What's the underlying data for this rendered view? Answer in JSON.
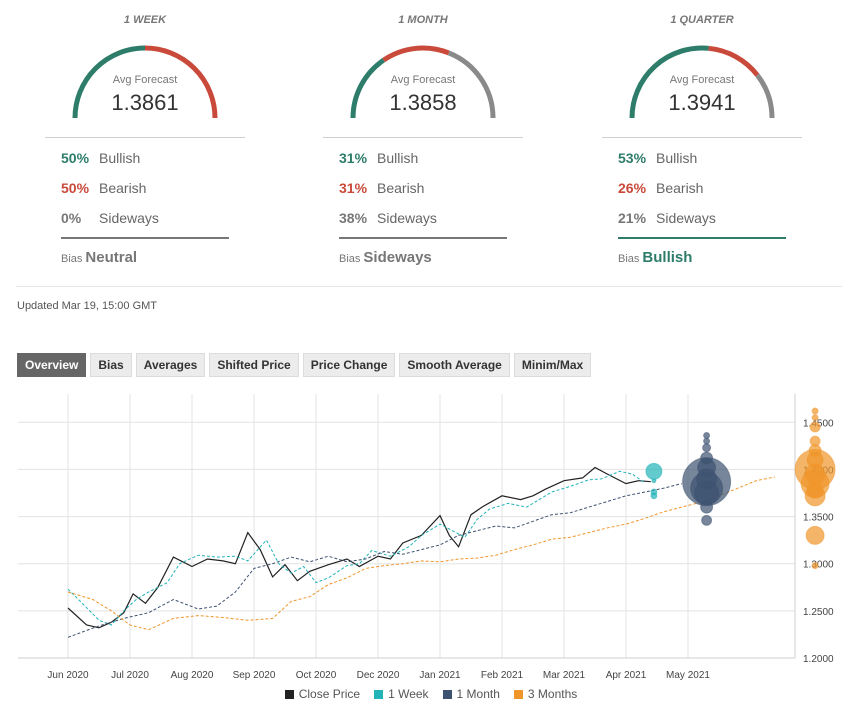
{
  "panels": [
    {
      "title": "1 WEEK",
      "avg_label": "Avg Forecast",
      "avg_value": "1.3861",
      "bullish_pct": "50%",
      "bullish_label": "Bullish",
      "bearish_pct": "50%",
      "bearish_label": "Bearish",
      "sideways_pct": "0%",
      "sideways_label": "Sideways",
      "bias_label": "Bias",
      "bias_value": "Neutral",
      "bias_color": "#777777",
      "gauge": {
        "bullish": 0.5,
        "bearish": 0.5,
        "sideways": 0.0
      }
    },
    {
      "title": "1 MONTH",
      "avg_label": "Avg Forecast",
      "avg_value": "1.3858",
      "bullish_pct": "31%",
      "bullish_label": "Bullish",
      "bearish_pct": "31%",
      "bearish_label": "Bearish",
      "sideways_pct": "38%",
      "sideways_label": "Sideways",
      "bias_label": "Bias",
      "bias_value": "Sideways",
      "bias_color": "#777777",
      "gauge": {
        "bullish": 0.31,
        "bearish": 0.31,
        "sideways": 0.38
      }
    },
    {
      "title": "1 QUARTER",
      "avg_label": "Avg Forecast",
      "avg_value": "1.3941",
      "bullish_pct": "53%",
      "bullish_label": "Bullish",
      "bearish_pct": "26%",
      "bearish_label": "Bearish",
      "sideways_pct": "21%",
      "sideways_label": "Sideways",
      "bias_label": "Bias",
      "bias_value": "Bullish",
      "bias_color": "#2e7d6b",
      "gauge": {
        "bullish": 0.53,
        "bearish": 0.26,
        "sideways": 0.21
      }
    }
  ],
  "colors": {
    "bullish": "#2e7d6b",
    "bearish": "#c94a3a",
    "sideways": "#8a8a8a",
    "close": "#222222",
    "week": "#21b3b8",
    "month": "#3d5270",
    "quarter": "#f0952a"
  },
  "updated": "Updated Mar 19, 15:00 GMT",
  "tabs": [
    "Overview",
    "Bias",
    "Averages",
    "Shifted Price",
    "Price Change",
    "Smooth Average",
    "Minim/Max"
  ],
  "chart_data": {
    "type": "line",
    "x_ticks": [
      "Jun 2020",
      "Jul 2020",
      "Aug 2020",
      "Sep 2020",
      "Oct 2020",
      "Dec 2020",
      "Jan 2021",
      "Feb 2021",
      "Mar 2021",
      "Apr 2021",
      "May 2021"
    ],
    "y_ticks": [
      "1.2000",
      "1.2500",
      "1.3000",
      "1.3500",
      "1.4000",
      "1.4500"
    ],
    "ylim": [
      1.2,
      1.48
    ],
    "grid": true,
    "legend_position": "bottom",
    "series": [
      {
        "name": "Close Price",
        "style": "solid",
        "color_key": "close",
        "points": [
          [
            0.3,
            1.253
          ],
          [
            0.6,
            1.235
          ],
          [
            0.8,
            1.232
          ],
          [
            1.0,
            1.238
          ],
          [
            1.2,
            1.248
          ],
          [
            1.35,
            1.268
          ],
          [
            1.55,
            1.258
          ],
          [
            1.75,
            1.275
          ],
          [
            2.0,
            1.307
          ],
          [
            2.3,
            1.297
          ],
          [
            2.55,
            1.305
          ],
          [
            2.8,
            1.303
          ],
          [
            3.0,
            1.3
          ],
          [
            3.2,
            1.333
          ],
          [
            3.4,
            1.315
          ],
          [
            3.6,
            1.286
          ],
          [
            3.8,
            1.299
          ],
          [
            4.0,
            1.282
          ],
          [
            4.2,
            1.292
          ],
          [
            4.5,
            1.299
          ],
          [
            4.8,
            1.305
          ],
          [
            5.0,
            1.297
          ],
          [
            5.3,
            1.308
          ],
          [
            5.5,
            1.305
          ],
          [
            5.7,
            1.322
          ],
          [
            6.0,
            1.33
          ],
          [
            6.3,
            1.351
          ],
          [
            6.45,
            1.33
          ],
          [
            6.6,
            1.318
          ],
          [
            6.8,
            1.352
          ],
          [
            7.0,
            1.361
          ],
          [
            7.3,
            1.372
          ],
          [
            7.6,
            1.368
          ],
          [
            7.8,
            1.372
          ],
          [
            8.0,
            1.379
          ],
          [
            8.3,
            1.388
          ],
          [
            8.6,
            1.391
          ],
          [
            8.8,
            1.402
          ],
          [
            9.0,
            1.395
          ],
          [
            9.3,
            1.385
          ],
          [
            9.5,
            1.388
          ],
          [
            9.7,
            1.387
          ]
        ]
      },
      {
        "name": "1 Week",
        "style": "dashed",
        "color_key": "week",
        "points": [
          [
            0.3,
            1.273
          ],
          [
            0.5,
            1.26
          ],
          [
            0.8,
            1.24
          ],
          [
            1.0,
            1.235
          ],
          [
            1.2,
            1.25
          ],
          [
            1.4,
            1.262
          ],
          [
            1.6,
            1.27
          ],
          [
            1.9,
            1.28
          ],
          [
            2.1,
            1.3
          ],
          [
            2.4,
            1.309
          ],
          [
            2.7,
            1.307
          ],
          [
            3.0,
            1.308
          ],
          [
            3.2,
            1.303
          ],
          [
            3.5,
            1.325
          ],
          [
            3.7,
            1.3
          ],
          [
            3.9,
            1.29
          ],
          [
            4.1,
            1.297
          ],
          [
            4.3,
            1.28
          ],
          [
            4.5,
            1.285
          ],
          [
            4.8,
            1.298
          ],
          [
            5.0,
            1.3
          ],
          [
            5.2,
            1.314
          ],
          [
            5.5,
            1.308
          ],
          [
            5.8,
            1.318
          ],
          [
            6.0,
            1.33
          ],
          [
            6.3,
            1.342
          ],
          [
            6.5,
            1.335
          ],
          [
            6.7,
            1.328
          ],
          [
            6.9,
            1.347
          ],
          [
            7.1,
            1.358
          ],
          [
            7.4,
            1.364
          ],
          [
            7.7,
            1.36
          ],
          [
            7.9,
            1.368
          ],
          [
            8.1,
            1.376
          ],
          [
            8.4,
            1.382
          ],
          [
            8.7,
            1.389
          ],
          [
            8.9,
            1.39
          ],
          [
            9.2,
            1.398
          ],
          [
            9.4,
            1.395
          ],
          [
            9.6,
            1.386
          ]
        ]
      },
      {
        "name": "1 Month",
        "style": "dashed",
        "color_key": "month",
        "points": [
          [
            0.3,
            1.222
          ],
          [
            0.8,
            1.234
          ],
          [
            1.2,
            1.242
          ],
          [
            1.6,
            1.248
          ],
          [
            2.0,
            1.262
          ],
          [
            2.4,
            1.252
          ],
          [
            2.7,
            1.255
          ],
          [
            3.0,
            1.27
          ],
          [
            3.3,
            1.295
          ],
          [
            3.6,
            1.3
          ],
          [
            3.9,
            1.307
          ],
          [
            4.2,
            1.302
          ],
          [
            4.5,
            1.308
          ],
          [
            4.8,
            1.302
          ],
          [
            5.1,
            1.305
          ],
          [
            5.4,
            1.313
          ],
          [
            5.7,
            1.31
          ],
          [
            6.0,
            1.315
          ],
          [
            6.3,
            1.32
          ],
          [
            6.6,
            1.33
          ],
          [
            6.9,
            1.335
          ],
          [
            7.2,
            1.34
          ],
          [
            7.5,
            1.338
          ],
          [
            7.8,
            1.345
          ],
          [
            8.1,
            1.352
          ],
          [
            8.4,
            1.354
          ],
          [
            8.7,
            1.36
          ],
          [
            9.0,
            1.366
          ],
          [
            9.3,
            1.372
          ],
          [
            9.6,
            1.376
          ],
          [
            9.9,
            1.38
          ],
          [
            10.2,
            1.385
          ]
        ]
      },
      {
        "name": "3 Months",
        "style": "dashed",
        "color_key": "quarter",
        "points": [
          [
            0.3,
            1.27
          ],
          [
            0.7,
            1.262
          ],
          [
            1.0,
            1.25
          ],
          [
            1.3,
            1.235
          ],
          [
            1.6,
            1.23
          ],
          [
            2.0,
            1.242
          ],
          [
            2.4,
            1.245
          ],
          [
            2.8,
            1.243
          ],
          [
            3.2,
            1.24
          ],
          [
            3.6,
            1.242
          ],
          [
            3.9,
            1.26
          ],
          [
            4.2,
            1.265
          ],
          [
            4.5,
            1.278
          ],
          [
            4.8,
            1.285
          ],
          [
            5.1,
            1.295
          ],
          [
            5.4,
            1.298
          ],
          [
            5.7,
            1.3
          ],
          [
            6.0,
            1.303
          ],
          [
            6.3,
            1.302
          ],
          [
            6.6,
            1.305
          ],
          [
            6.9,
            1.306
          ],
          [
            7.2,
            1.309
          ],
          [
            7.5,
            1.315
          ],
          [
            7.8,
            1.32
          ],
          [
            8.1,
            1.326
          ],
          [
            8.4,
            1.328
          ],
          [
            8.7,
            1.333
          ],
          [
            9.0,
            1.338
          ],
          [
            9.3,
            1.342
          ],
          [
            9.6,
            1.348
          ],
          [
            9.9,
            1.355
          ],
          [
            10.2,
            1.36
          ],
          [
            10.5,
            1.365
          ],
          [
            10.8,
            1.372
          ],
          [
            11.1,
            1.38
          ],
          [
            11.4,
            1.388
          ],
          [
            11.7,
            1.392
          ]
        ]
      }
    ],
    "forecast_bubbles": [
      {
        "series": "1 Week",
        "x": 9.75,
        "points": [
          [
            1.398,
            8
          ],
          [
            1.388,
            2
          ],
          [
            1.376,
            3
          ],
          [
            1.372,
            3
          ]
        ]
      },
      {
        "series": "1 Month",
        "x": 10.6,
        "points": [
          [
            1.387,
            24
          ],
          [
            1.38,
            16
          ],
          [
            1.375,
            12
          ],
          [
            1.39,
            10
          ],
          [
            1.402,
            9
          ],
          [
            1.412,
            6
          ],
          [
            1.423,
            4
          ],
          [
            1.43,
            3
          ],
          [
            1.436,
            3
          ],
          [
            1.36,
            6
          ],
          [
            1.346,
            5
          ]
        ]
      },
      {
        "series": "3 Months",
        "x": 12.35,
        "points": [
          [
            1.4,
            20
          ],
          [
            1.385,
            14
          ],
          [
            1.395,
            10
          ],
          [
            1.41,
            8
          ],
          [
            1.372,
            10
          ],
          [
            1.378,
            8
          ],
          [
            1.42,
            6
          ],
          [
            1.43,
            5
          ],
          [
            1.445,
            5
          ],
          [
            1.455,
            3
          ],
          [
            1.462,
            3
          ],
          [
            1.33,
            9
          ],
          [
            1.298,
            3
          ]
        ]
      }
    ]
  }
}
